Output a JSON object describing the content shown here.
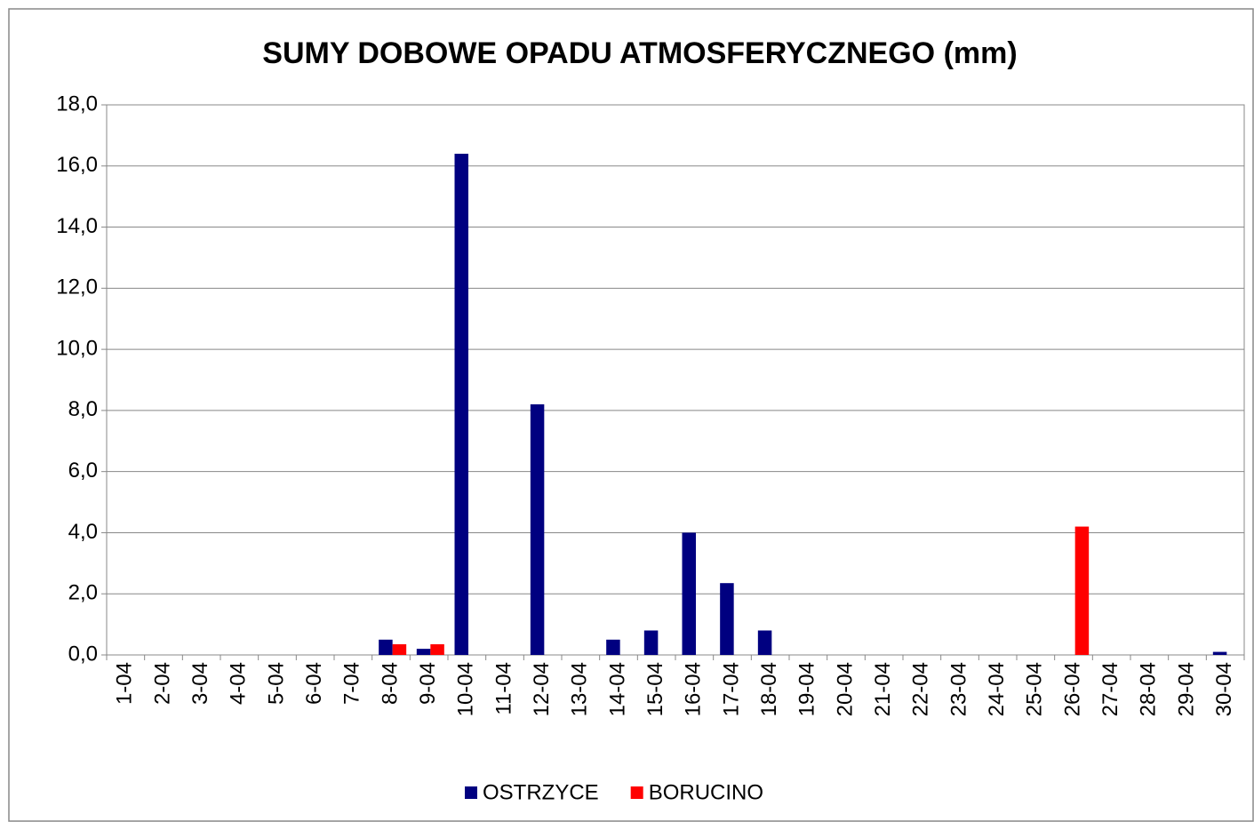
{
  "chart_data": {
    "type": "bar",
    "title": "SUMY DOBOWE OPADU ATMOSFERYCZNEGO (mm)",
    "categories": [
      "1-04",
      "2-04",
      "3-04",
      "4-04",
      "5-04",
      "6-04",
      "7-04",
      "8-04",
      "9-04",
      "10-04",
      "11-04",
      "12-04",
      "13-04",
      "14-04",
      "15-04",
      "16-04",
      "17-04",
      "18-04",
      "19-04",
      "20-04",
      "21-04",
      "22-04",
      "23-04",
      "24-04",
      "25-04",
      "26-04",
      "27-04",
      "28-04",
      "29-04",
      "30-04"
    ],
    "series": [
      {
        "name": "OSTRZYCE",
        "color": "#000080",
        "values": [
          0,
          0,
          0,
          0,
          0,
          0,
          0,
          0.5,
          0.2,
          16.4,
          0,
          8.2,
          0,
          0.5,
          0.8,
          4.0,
          2.35,
          0.8,
          0,
          0,
          0,
          0,
          0,
          0,
          0,
          0,
          0,
          0,
          0,
          0.1
        ]
      },
      {
        "name": "BORUCINO",
        "color": "#ff0000",
        "values": [
          0,
          0,
          0,
          0,
          0,
          0,
          0,
          0.35,
          0.35,
          0,
          0,
          0,
          0,
          0,
          0,
          0,
          0,
          0,
          0,
          0,
          0,
          0,
          0,
          0,
          0,
          4.2,
          0,
          0,
          0,
          0
        ]
      }
    ],
    "ylim": [
      0,
      18
    ],
    "yticks": [
      {
        "value": 0,
        "label": "0,0"
      },
      {
        "value": 2,
        "label": "2,0"
      },
      {
        "value": 4,
        "label": "4,0"
      },
      {
        "value": 6,
        "label": "6,0"
      },
      {
        "value": 8,
        "label": "8,0"
      },
      {
        "value": 10,
        "label": "10,0"
      },
      {
        "value": 12,
        "label": "12,0"
      },
      {
        "value": 14,
        "label": "14,0"
      },
      {
        "value": 16,
        "label": "16,0"
      },
      {
        "value": 18,
        "label": "18,0"
      }
    ],
    "grid": true,
    "legend": "bottom"
  }
}
